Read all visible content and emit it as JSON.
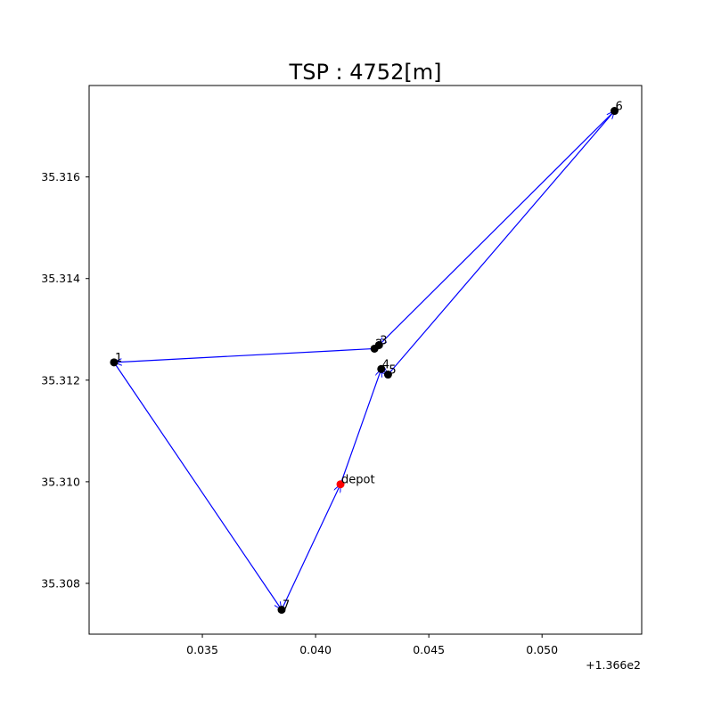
{
  "chart_data": {
    "type": "scatter",
    "title": "TSP : 4752[m]",
    "xlabel": "",
    "ylabel": "",
    "x_offset_label": "+1.366e2",
    "xlim": [
      136.63,
      136.6544
    ],
    "ylim": [
      35.307,
      35.3178
    ],
    "x_ticks": [
      136.635,
      136.64,
      136.645,
      136.65
    ],
    "x_tick_labels": [
      "0.035",
      "0.040",
      "0.045",
      "0.050"
    ],
    "y_ticks": [
      35.308,
      35.31,
      35.312,
      35.314,
      35.316
    ],
    "y_tick_labels": [
      "35.308",
      "35.310",
      "35.312",
      "35.314",
      "35.316"
    ],
    "grid": false,
    "colors": {
      "route": "#0000ff",
      "node": "#000000",
      "depot": "#ff0000"
    },
    "points": [
      {
        "label": "depot",
        "x": 136.6411,
        "y": 35.30995,
        "kind": "depot"
      },
      {
        "label": "1",
        "x": 136.6311,
        "y": 35.31235,
        "kind": "node"
      },
      {
        "label": "2",
        "x": 136.6426,
        "y": 35.31262,
        "kind": "node"
      },
      {
        "label": "3",
        "x": 136.6428,
        "y": 35.31269,
        "kind": "node"
      },
      {
        "label": "4",
        "x": 136.6429,
        "y": 35.31222,
        "kind": "node"
      },
      {
        "label": "5",
        "x": 136.6432,
        "y": 35.31211,
        "kind": "node"
      },
      {
        "label": "6",
        "x": 136.6532,
        "y": 35.3173,
        "kind": "node"
      },
      {
        "label": "7",
        "x": 136.6385,
        "y": 35.30748,
        "kind": "node"
      }
    ],
    "route": [
      "depot",
      "4",
      "5",
      "6",
      "3",
      "2",
      "1",
      "7",
      "depot"
    ]
  }
}
